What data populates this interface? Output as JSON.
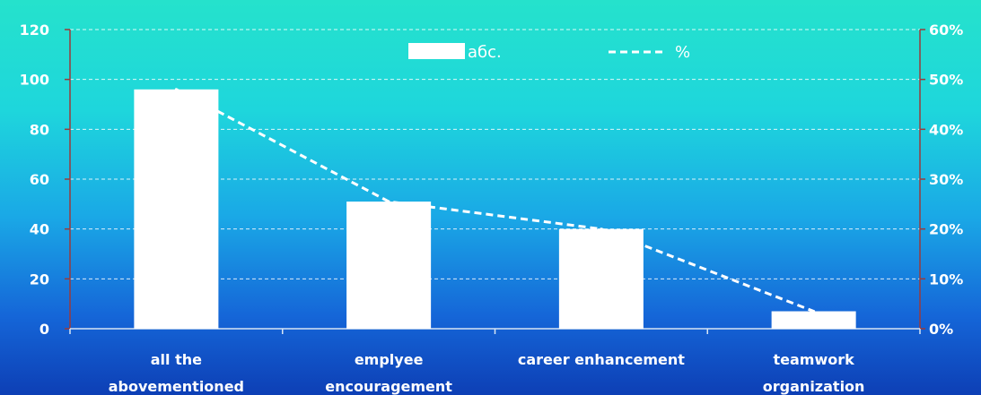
{
  "chart_data": {
    "type": "bar",
    "categories": [
      [
        "all the",
        "abovementioned"
      ],
      [
        "emplyee",
        "encouragement"
      ],
      [
        "career enhancement"
      ],
      [
        "teamwork",
        "organization"
      ]
    ],
    "series": [
      {
        "name": "абс.",
        "type": "bar",
        "axis": "left",
        "values": [
          96,
          51,
          40,
          7
        ]
      },
      {
        "name": "%",
        "type": "line",
        "axis": "right",
        "style": "dashed",
        "values": [
          48,
          25.5,
          20,
          3.5
        ]
      }
    ],
    "left_axis": {
      "min": 0,
      "max": 120,
      "ticks": [
        "0",
        "20",
        "40",
        "60",
        "80",
        "100",
        "120"
      ]
    },
    "right_axis": {
      "min": 0,
      "max": 60,
      "ticks": [
        "0%",
        "10%",
        "20%",
        "30%",
        "40%",
        "50%",
        "60%"
      ]
    },
    "grid": true,
    "legend": "top-center",
    "colors": {
      "bar": "#ffffff",
      "line": "#ffffff",
      "grid": "#ffffff",
      "axis": "#9b3a3a"
    }
  }
}
